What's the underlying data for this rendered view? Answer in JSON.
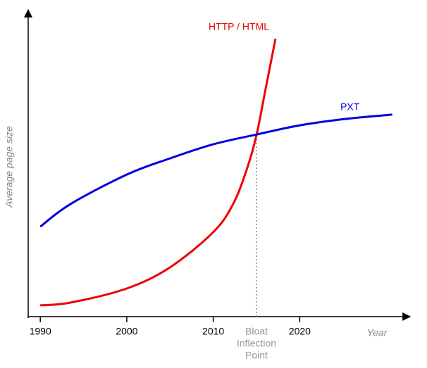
{
  "chart_data": {
    "type": "line",
    "x_label": "Year",
    "y_label": "Average page size",
    "xlim": [
      1988.6,
      2032.6
    ],
    "ylim": [
      0,
      100
    ],
    "xticks": [
      1990,
      2000,
      2010,
      2020
    ],
    "series": [
      {
        "name": "HTTP / HTML",
        "color": "#ee0000",
        "x": [
          1990,
          1993.5,
          2000,
          2005,
          2010,
          2012.3,
          2013.9,
          2015,
          2016,
          2017.2
        ],
        "values": [
          3.7,
          4.6,
          9.2,
          16.1,
          27.6,
          36.8,
          48.3,
          59.3,
          73.6,
          90.8
        ]
      },
      {
        "name": "PXT",
        "color": "#0000dd",
        "x": [
          1990,
          1993.5,
          2000,
          2005,
          2010,
          2015,
          2020,
          2025.3,
          2030.7
        ],
        "values": [
          29.4,
          36.8,
          46.4,
          51.7,
          56.3,
          59.5,
          62.5,
          64.6,
          66
        ]
      }
    ],
    "annotation": {
      "x": 2015,
      "y": 59.4,
      "lines": [
        "Bloat",
        "Inflection",
        "Point"
      ]
    }
  }
}
